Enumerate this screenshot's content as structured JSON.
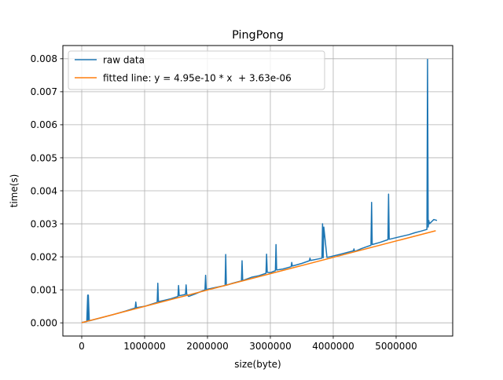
{
  "chart_data": {
    "type": "line",
    "title": "PingPong",
    "xlabel": "size(byte)",
    "ylabel": "time(s)",
    "xlim": [
      -300000,
      5900000
    ],
    "ylim": [
      -0.0004,
      0.0084
    ],
    "grid": true,
    "legend_position": "top-left",
    "x_ticks": [
      0,
      1000000,
      2000000,
      3000000,
      4000000,
      5000000
    ],
    "x_tick_labels": [
      "0",
      "1000000",
      "2000000",
      "3000000",
      "4000000",
      "5000000"
    ],
    "y_ticks": [
      0,
      0.001,
      0.002,
      0.003,
      0.004,
      0.005,
      0.006,
      0.007,
      0.008
    ],
    "y_tick_labels": [
      "0.000",
      "0.001",
      "0.002",
      "0.003",
      "0.004",
      "0.005",
      "0.006",
      "0.007",
      "0.008"
    ],
    "series": [
      {
        "name": "raw data",
        "color": "#1f77b4",
        "x": [
          0,
          80000,
          95000,
          100000,
          105000,
          120000,
          300000,
          500000,
          700000,
          850000,
          860000,
          870000,
          1000000,
          1200000,
          1210000,
          1220000,
          1400000,
          1530000,
          1540000,
          1550000,
          1650000,
          1660000,
          1670000,
          1700000,
          1800000,
          1960000,
          1970000,
          1980000,
          2100000,
          2280000,
          2290000,
          2300000,
          2400000,
          2540000,
          2550000,
          2560000,
          2700000,
          2820000,
          2930000,
          2940000,
          2950000,
          3000000,
          3080000,
          3090000,
          3100000,
          3200000,
          3330000,
          3340000,
          3350000,
          3500000,
          3620000,
          3630000,
          3640000,
          3800000,
          3820000,
          3830000,
          3840000,
          3850000,
          3900000,
          4100000,
          4320000,
          4330000,
          4340000,
          4450000,
          4600000,
          4610000,
          4620000,
          4750000,
          4870000,
          4880000,
          4890000,
          5000000,
          5200000,
          5300000,
          5400000,
          5490000,
          5500000,
          5510000,
          5520000,
          5530000,
          5600000,
          5650000
        ],
        "y": [
          1e-05,
          4e-05,
          0.00084,
          6e-05,
          0.00084,
          6e-05,
          0.00015,
          0.00025,
          0.00036,
          0.00045,
          0.00063,
          0.00046,
          0.0005,
          0.00062,
          0.0012,
          0.00064,
          0.00072,
          0.0008,
          0.00113,
          0.00082,
          0.00086,
          0.00115,
          0.00087,
          0.0008,
          0.00087,
          0.001,
          0.00144,
          0.00101,
          0.00106,
          0.00113,
          0.00207,
          0.00114,
          0.0012,
          0.00127,
          0.00188,
          0.00128,
          0.00138,
          0.00143,
          0.0015,
          0.00208,
          0.00153,
          0.00152,
          0.00158,
          0.00237,
          0.0016,
          0.00163,
          0.0017,
          0.00183,
          0.00172,
          0.0018,
          0.00188,
          0.00196,
          0.00189,
          0.00195,
          0.00196,
          0.003,
          0.00197,
          0.0029,
          0.00198,
          0.00207,
          0.00218,
          0.00224,
          0.00216,
          0.00225,
          0.00235,
          0.00365,
          0.00237,
          0.00244,
          0.00252,
          0.0039,
          0.00253,
          0.00258,
          0.00267,
          0.00273,
          0.00278,
          0.00283,
          0.00798,
          0.0029,
          0.0031,
          0.003,
          0.00313,
          0.0031
        ]
      },
      {
        "name": "fitted line: y = 4.95e-10 * x  + 3.63e-06",
        "color": "#ff7f0e",
        "slope": 4.95e-10,
        "intercept": 3.63e-06,
        "x": [
          0,
          5630000
        ],
        "y": [
          3.63e-06,
          0.00279048
        ]
      }
    ]
  }
}
